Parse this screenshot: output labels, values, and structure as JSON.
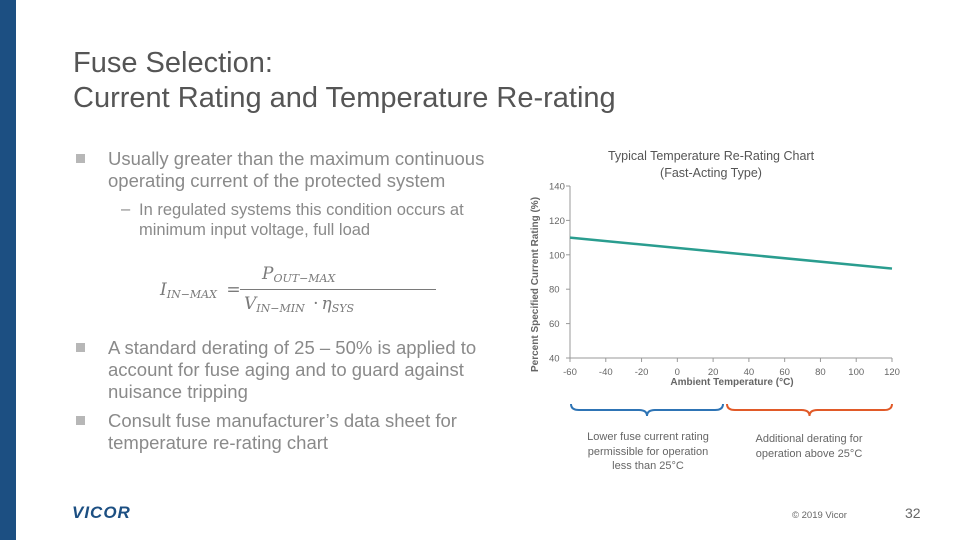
{
  "colors": {
    "brand": "#1c4f82",
    "series": "#2a9d8f",
    "brace_left": "#2e74b5",
    "brace_right": "#e15a28"
  },
  "title": {
    "line1": "Fuse Selection:",
    "line2": "Current Rating and Temperature Re-rating"
  },
  "bullets": {
    "b1": {
      "line1": "Usually greater than the maximum continuous",
      "line2": "operating current of the protected system"
    },
    "sub1": {
      "dash": "–",
      "line1": "In regulated systems this condition occurs at",
      "line2": "minimum input voltage, full load"
    },
    "formula": {
      "lhs_var": "I",
      "lhs_sub": "IN−MAX",
      "equals": "=",
      "num_var": "P",
      "num_sub": "OUT−MAX",
      "den_var": "V",
      "den_sub": "IN−MIN",
      "den_dot": "·",
      "den_var2": "η",
      "den_sub2": "SYS"
    },
    "b2": {
      "line1": "A standard derating of 25 – 50% is applied to",
      "line2": "account for fuse aging and to guard against",
      "line3": "nuisance tripping"
    },
    "b3": {
      "line1": "Consult fuse manufacturer’s data sheet for",
      "line2": "temperature re-rating chart"
    }
  },
  "chart_data": {
    "type": "line",
    "title": "Typical Temperature Re-Rating Chart",
    "subtitle": "(Fast-Acting Type)",
    "xlabel": "Ambient Temperature (°C)",
    "ylabel": "Percent Specified Current Rating (%)",
    "x_ticks": [
      -60,
      -40,
      -20,
      0,
      20,
      40,
      60,
      80,
      100,
      120
    ],
    "y_ticks": [
      40,
      60,
      80,
      100,
      120,
      140
    ],
    "xlim": [
      -60,
      120
    ],
    "ylim": [
      40,
      140
    ],
    "series": [
      {
        "name": "Re-rating",
        "x": [
          -60,
          120
        ],
        "y": [
          110,
          92
        ]
      }
    ],
    "annotations": {
      "left": {
        "line1": "Lower fuse current rating",
        "line2": "permissible for operation",
        "line3": "less than 25°C"
      },
      "right": {
        "line1": "Additional derating for",
        "line2": "operation above 25°C"
      }
    }
  },
  "footer": {
    "logo": "VICOR",
    "copyright": "© 2019 Vicor",
    "page": "32"
  }
}
